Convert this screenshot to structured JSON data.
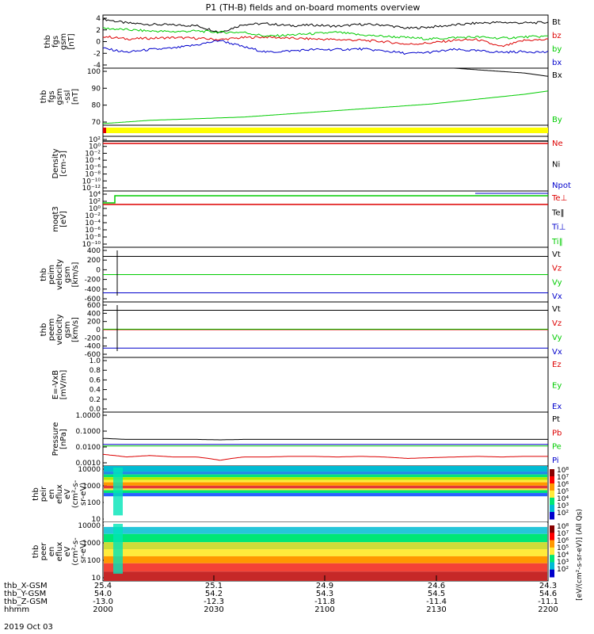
{
  "title": "P1  (TH-B) fields and on-board moments overview",
  "date_label": "2019 Oct 03",
  "colors": {
    "black": "#000000",
    "red": "#dd0000",
    "green": "#00cc00",
    "blue": "#0000cc",
    "yellow": "#ffff00"
  },
  "chart_data": [
    {
      "type": "line",
      "id": "fgs",
      "ylabel_lines": [
        "thb",
        "fgs",
        "gsm",
        "[nT]"
      ],
      "ylim": [
        -4,
        4
      ],
      "ticks": [
        "4",
        "2",
        "0",
        "-2",
        "-4"
      ],
      "series": [
        {
          "name": "Bt",
          "color": "#000000",
          "values": [
            3.4,
            2.8,
            2.6,
            2.5,
            2.4,
            1.4,
            2.6,
            2.7,
            2.4,
            2.5,
            2.3,
            2.6,
            2.5,
            2.0,
            2.2,
            2.5,
            2.8,
            2.9,
            2.8,
            2.9
          ]
        },
        {
          "name": "bz",
          "color": "#dd0000",
          "values": [
            0.8,
            0.4,
            0.5,
            0.6,
            0.5,
            0.3,
            0.6,
            0.7,
            0.5,
            0.4,
            0.3,
            0.2,
            0.0,
            -0.4,
            -0.2,
            0.2,
            0.3,
            -0.8,
            0.2,
            0.3
          ]
        },
        {
          "name": "by",
          "color": "#00cc00",
          "values": [
            2.0,
            1.8,
            1.6,
            1.5,
            1.6,
            1.4,
            1.4,
            0.8,
            1.0,
            1.2,
            1.4,
            1.0,
            0.8,
            0.6,
            0.4,
            0.6,
            0.7,
            0.5,
            0.7,
            0.8
          ]
        },
        {
          "name": "bx",
          "color": "#0000cc",
          "values": [
            -1.0,
            -1.6,
            -1.2,
            -1.0,
            -0.5,
            0.2,
            -0.8,
            -1.6,
            -1.4,
            -1.2,
            -1.2,
            -1.1,
            -1.4,
            -1.8,
            -1.6,
            -1.2,
            -1.4,
            -1.6,
            -1.5,
            -1.6
          ]
        }
      ]
    },
    {
      "type": "line",
      "id": "fgs-ssl",
      "ylabel_lines": [
        "thb",
        "fgs",
        "gsm",
        "-ssl",
        "[nT]"
      ],
      "ylim": [
        65,
        100
      ],
      "ticks": [
        "100",
        "90",
        "80",
        "70"
      ],
      "series": [
        {
          "name": "Bx",
          "color": "#000000",
          "values": [
            101,
            101,
            101,
            101,
            101,
            101,
            101,
            101,
            101,
            101,
            101,
            101,
            101,
            101,
            101,
            100,
            99,
            98,
            97,
            95
          ]
        },
        {
          "name": "By",
          "color": "#00cc00",
          "values": [
            66,
            67,
            68,
            68.5,
            69,
            69.5,
            70,
            71,
            72,
            73,
            74,
            75,
            76,
            77,
            78,
            79.5,
            81,
            82.5,
            84,
            86
          ]
        }
      ]
    },
    {
      "type": "heatmap",
      "id": "flag-bar",
      "note": "yellow flag bar with red marker at start"
    },
    {
      "type": "line",
      "id": "density",
      "ylabel_lines": [
        "Density",
        "[cm-3]"
      ],
      "ticks": [
        "10²",
        "10⁰",
        "10⁻²",
        "10⁻⁴",
        "10⁻⁶",
        "10⁻⁸",
        "10⁻¹⁰",
        "10⁻¹²"
      ],
      "series": [
        {
          "name": "Ne",
          "color": "#dd0000"
        },
        {
          "name": "Ni",
          "color": "#000000"
        },
        {
          "name": "Npot",
          "color": "#0000cc"
        }
      ]
    },
    {
      "type": "line",
      "id": "temperature",
      "ylabel_lines": [
        "moqt3",
        "[eV]"
      ],
      "ticks": [
        "10⁴",
        "10²",
        "10⁰",
        "10⁻²",
        "10⁻⁴",
        "10⁻⁶",
        "10⁻⁸",
        "10⁻¹⁰"
      ],
      "series": [
        {
          "name": "Te⊥",
          "color": "#dd0000"
        },
        {
          "name": "Te‖",
          "color": "#000000"
        },
        {
          "name": "Ti⊥",
          "color": "#0000cc"
        },
        {
          "name": "Ti‖",
          "color": "#00cc00"
        }
      ]
    },
    {
      "type": "line",
      "id": "peim-velocity",
      "ylabel_lines": [
        "thb",
        "peim",
        "velocity",
        "gsm",
        "[km/s]"
      ],
      "ylim": [
        -600,
        600
      ],
      "ticks": [
        "400",
        "200",
        "0",
        "-200",
        "-400",
        "-600"
      ],
      "series": [
        {
          "name": "Vt",
          "color": "#000000",
          "values": [
            400,
            400,
            400,
            400,
            400,
            400,
            400,
            400,
            400,
            400
          ]
        },
        {
          "name": "Vz",
          "color": "#dd0000",
          "values": [
            0,
            0,
            0,
            0,
            0,
            0,
            0,
            0,
            0,
            0
          ]
        },
        {
          "name": "Vy",
          "color": "#00cc00",
          "values": [
            0,
            0,
            0,
            0,
            0,
            0,
            0,
            0,
            0,
            0
          ]
        },
        {
          "name": "Vx",
          "color": "#0000cc",
          "values": [
            -400,
            -400,
            -400,
            -400,
            -400,
            -400,
            -400,
            -400,
            -400,
            -400
          ]
        }
      ]
    },
    {
      "type": "line",
      "id": "peem-velocity",
      "ylabel_lines": [
        "thb",
        "peem",
        "velocity",
        "gsm",
        "[km/s]"
      ],
      "ylim": [
        -600,
        600
      ],
      "ticks": [
        "600",
        "400",
        "200",
        "0",
        "-200",
        "-400",
        "-600"
      ],
      "series": [
        {
          "name": "Vt",
          "color": "#000000",
          "values": [
            420,
            420,
            420,
            420,
            420,
            420,
            420,
            420,
            420,
            420
          ]
        },
        {
          "name": "Vz",
          "color": "#dd0000",
          "values": [
            0,
            0,
            0,
            0,
            0,
            0,
            0,
            0,
            0,
            0
          ]
        },
        {
          "name": "Vy",
          "color": "#00cc00",
          "values": [
            10,
            10,
            10,
            10,
            10,
            10,
            10,
            10,
            10,
            10
          ]
        },
        {
          "name": "Vx",
          "color": "#0000cc",
          "values": [
            -400,
            -400,
            -400,
            -400,
            -400,
            -400,
            -400,
            -400,
            -400,
            -400
          ]
        }
      ]
    },
    {
      "type": "line",
      "id": "efield",
      "ylabel_lines": [
        "E=-VxB",
        "[mV/m]"
      ],
      "ylim": [
        0,
        1
      ],
      "ticks": [
        "1.0",
        "0.8",
        "0.6",
        "0.4",
        "0.2",
        "0.0"
      ],
      "series": [
        {
          "name": "Ez",
          "color": "#dd0000"
        },
        {
          "name": "Ey",
          "color": "#00cc00"
        },
        {
          "name": "Ex",
          "color": "#0000cc"
        }
      ]
    },
    {
      "type": "line",
      "id": "pressure",
      "log_scale": true,
      "ylabel_lines": [
        "Pressure",
        "[nPa]"
      ],
      "ticks": [
        "1.0000",
        "0.1000",
        "0.0100",
        "0.0010"
      ],
      "series": [
        {
          "name": "Pt",
          "color": "#000000",
          "values": [
            0.035,
            0.03,
            0.03,
            0.03,
            0.03,
            0.028,
            0.03,
            0.03,
            0.03,
            0.03,
            0.03,
            0.03,
            0.03,
            0.03,
            0.03,
            0.03,
            0.03,
            0.03,
            0.03,
            0.03
          ]
        },
        {
          "name": "Pb",
          "color": "#dd0000",
          "values": [
            0.003,
            0.002,
            0.0025,
            0.002,
            0.002,
            0.0012,
            0.002,
            0.002,
            0.0022,
            0.0022,
            0.002,
            0.0022,
            0.002,
            0.0016,
            0.0018,
            0.002,
            0.0022,
            0.002,
            0.0022,
            0.0022
          ]
        },
        {
          "name": "Pe",
          "color": "#00cc00",
          "values": [
            0.011,
            0.011,
            0.011,
            0.011,
            0.011,
            0.011,
            0.011,
            0.011,
            0.011,
            0.011,
            0.011,
            0.011,
            0.011,
            0.011,
            0.011,
            0.011,
            0.011,
            0.011,
            0.011,
            0.011
          ]
        },
        {
          "name": "Pi",
          "color": "#0000cc",
          "values": [
            0.014,
            0.014,
            0.014,
            0.014,
            0.014,
            0.014,
            0.014,
            0.014,
            0.014,
            0.014,
            0.014,
            0.014,
            0.014,
            0.014,
            0.014,
            0.014,
            0.014,
            0.014,
            0.014,
            0.014
          ]
        }
      ]
    },
    {
      "type": "heatmap",
      "id": "peir-eflux",
      "ylabel_lines": [
        "thb",
        "peir",
        "en",
        "eflux",
        "eV",
        "(cm²-s-",
        "sr-eV)"
      ],
      "ticks": [
        "10000",
        "1000",
        "100",
        "10"
      ]
    },
    {
      "type": "heatmap",
      "id": "peer-eflux",
      "ylabel_lines": [
        "thb",
        "peer",
        "en",
        "eflux",
        "eV",
        "(cm²-s-",
        "sr-eV)"
      ],
      "ticks": [
        "10000",
        "1000",
        "100",
        "10"
      ]
    }
  ],
  "colorbar": {
    "ticks": [
      "10⁸",
      "10⁷",
      "10⁶",
      "10⁵",
      "10⁴",
      "10³",
      "10²",
      "10⁸",
      "10⁷",
      "10⁶",
      "10⁵",
      "10⁴",
      "10³",
      "10²"
    ],
    "label": "[eV/(cm²-s-sr-eV)] (All Qs)"
  },
  "xaxis": {
    "rows": [
      {
        "label": "thb_X-GSM",
        "values": [
          "25.4",
          "25.1",
          "24.9",
          "24.6",
          "24.3"
        ]
      },
      {
        "label": "thb_Y-GSM",
        "values": [
          "54.0",
          "54.2",
          "54.3",
          "54.5",
          "54.6"
        ]
      },
      {
        "label": "thb_Z-GSM",
        "values": [
          "-13.0",
          "-12.3",
          "-11.8",
          "-11.4",
          "-11.1"
        ]
      },
      {
        "label": "hhmm",
        "values": [
          "2000",
          "2030",
          "2100",
          "2130",
          "2200"
        ]
      }
    ]
  }
}
